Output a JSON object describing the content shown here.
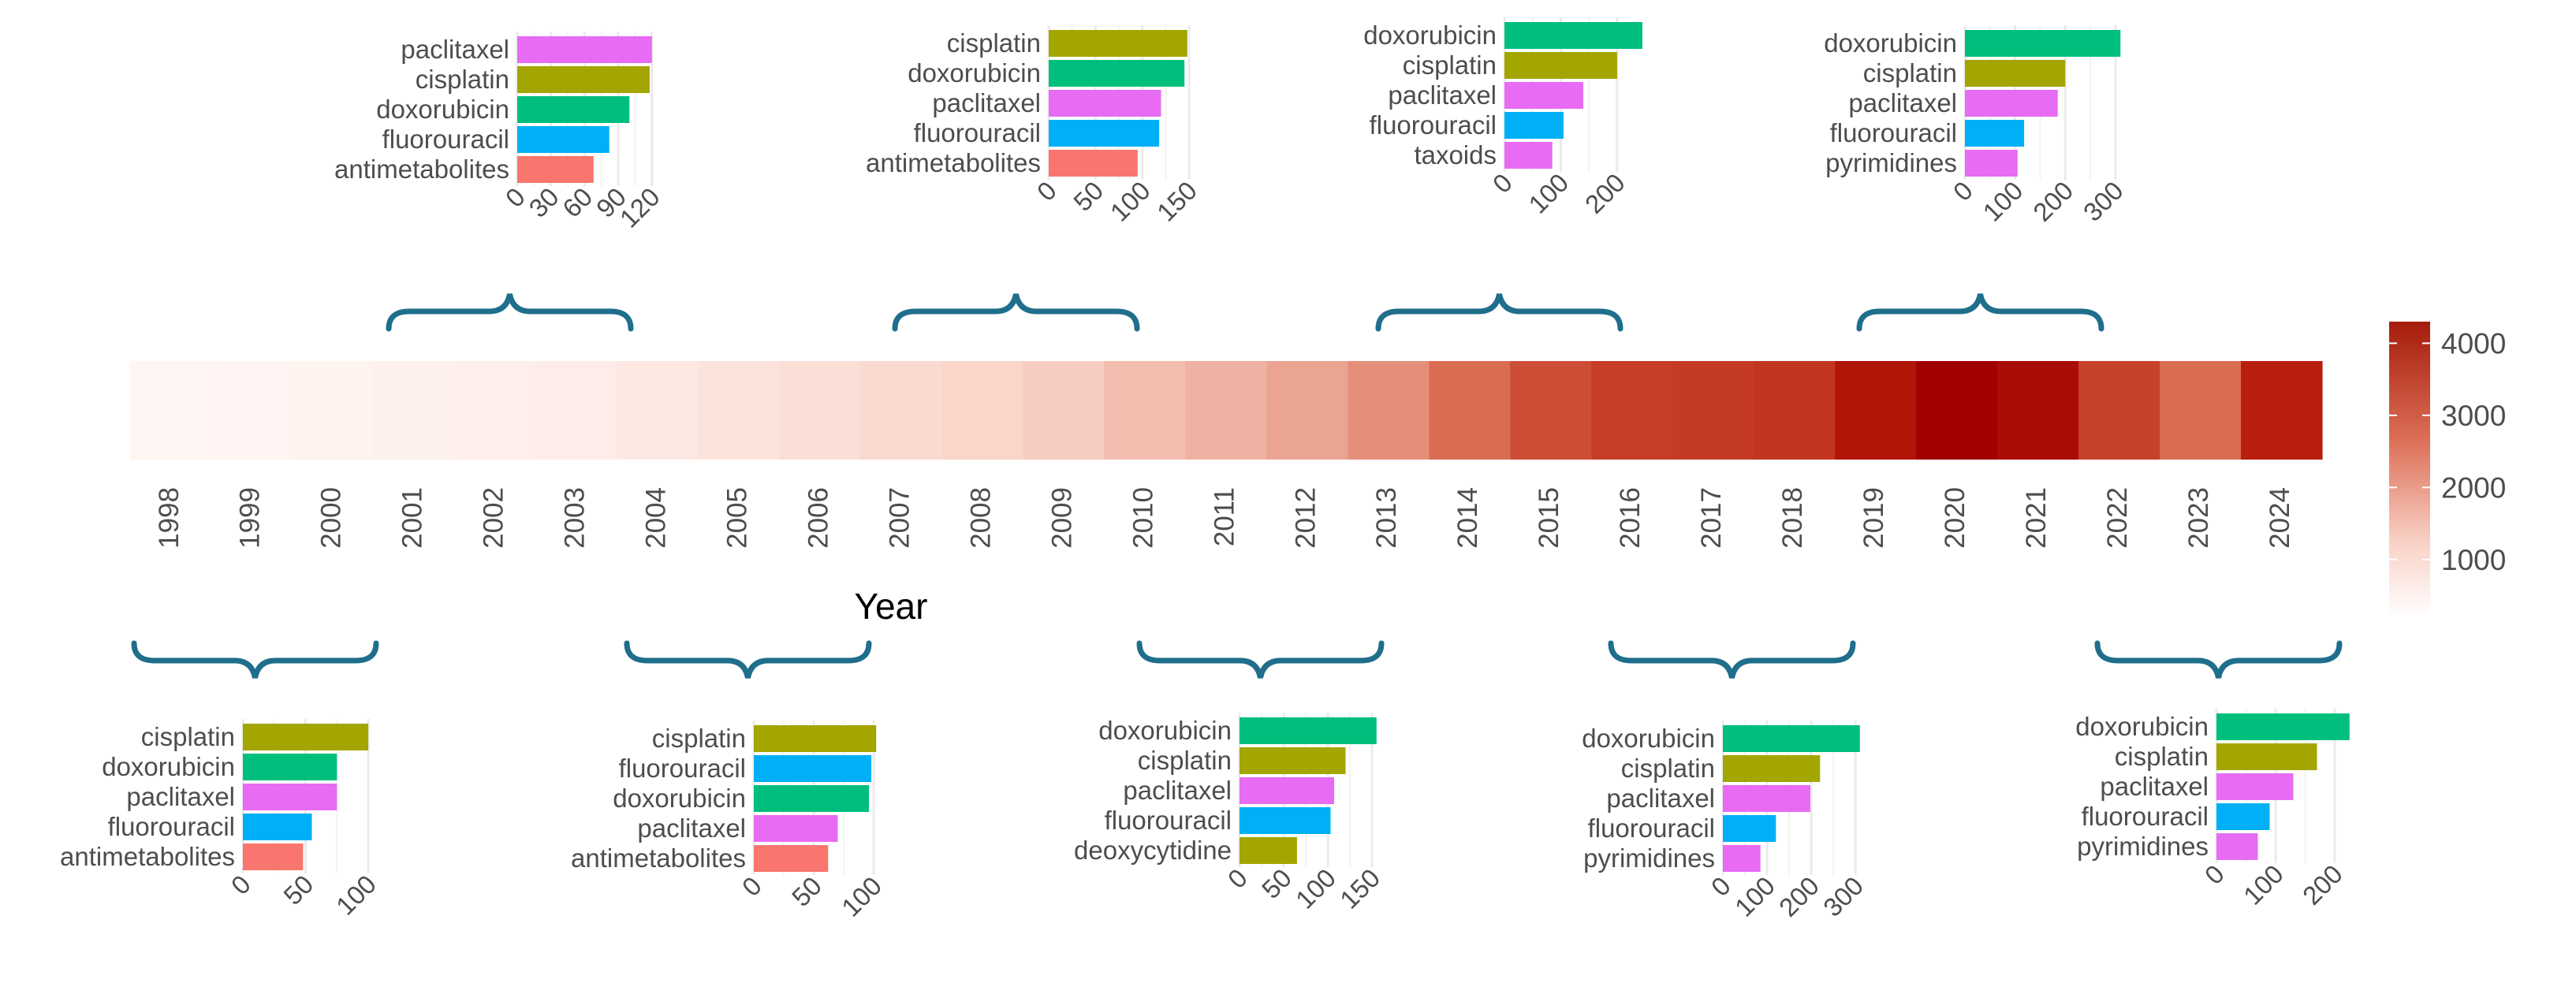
{
  "chart_data": {
    "type": "heatmap",
    "title": "",
    "xlabel": "Year",
    "years": [
      "1998",
      "1999",
      "2000",
      "2001",
      "2002",
      "2003",
      "2004",
      "2005",
      "2006",
      "2007",
      "2008",
      "2009",
      "2010",
      "2011",
      "2012",
      "2013",
      "2014",
      "2015",
      "2016",
      "2017",
      "2018",
      "2019",
      "2020",
      "2021",
      "2022",
      "2023",
      "2024"
    ],
    "values": [
      200,
      220,
      260,
      330,
      380,
      450,
      600,
      700,
      850,
      1000,
      1150,
      1300,
      1550,
      1700,
      1900,
      2200,
      2700,
      3100,
      3300,
      3350,
      3400,
      3900,
      4300,
      4050,
      3250,
      2700,
      3700
    ],
    "legend": {
      "min": 200,
      "max": 4300,
      "ticks": [
        1000,
        2000,
        3000,
        4000
      ],
      "colors": {
        "low": "#fff5f2",
        "high": "#a00000"
      }
    },
    "period_charts": [
      {
        "period": "1998-2000",
        "type": "bar-horizontal",
        "categories": [
          "cisplatin",
          "doxorubicin",
          "paclitaxel",
          "fluorouracil",
          "antimetabolites"
        ],
        "values": [
          100,
          75,
          75,
          55,
          48
        ],
        "ticks": [
          "0",
          "50",
          "100"
        ],
        "xlim": [
          0,
          110
        ]
      },
      {
        "period": "2001-2003",
        "type": "bar-horizontal",
        "categories": [
          "paclitaxel",
          "cisplatin",
          "doxorubicin",
          "fluorouracil",
          "antimetabolites"
        ],
        "values": [
          120,
          118,
          100,
          82,
          68
        ],
        "ticks": [
          "0",
          "30",
          "60",
          "90",
          "120"
        ],
        "xlim": [
          0,
          130
        ]
      },
      {
        "period": "2004-2006",
        "type": "bar-horizontal",
        "categories": [
          "cisplatin",
          "fluorouracil",
          "doxorubicin",
          "paclitaxel",
          "antimetabolites"
        ],
        "values": [
          102,
          98,
          96,
          70,
          62
        ],
        "ticks": [
          "0",
          "50",
          "100"
        ],
        "xlim": [
          0,
          115
        ]
      },
      {
        "period": "2007-2009",
        "type": "bar-horizontal",
        "categories": [
          "cisplatin",
          "doxorubicin",
          "paclitaxel",
          "fluorouracil",
          "antimetabolites"
        ],
        "values": [
          148,
          145,
          120,
          118,
          95
        ],
        "ticks": [
          "0",
          "50",
          "100",
          "150"
        ],
        "xlim": [
          0,
          160
        ]
      },
      {
        "period": "2010-2012",
        "type": "bar-horizontal",
        "categories": [
          "doxorubicin",
          "cisplatin",
          "paclitaxel",
          "fluorouracil",
          "deoxycytidine"
        ],
        "values": [
          155,
          120,
          107,
          103,
          65
        ],
        "ticks": [
          "0",
          "50",
          "100",
          "150"
        ],
        "xlim": [
          0,
          165
        ]
      },
      {
        "period": "2013-2015",
        "type": "bar-horizontal",
        "categories": [
          "doxorubicin",
          "cisplatin",
          "paclitaxel",
          "fluorouracil",
          "taxoids"
        ],
        "values": [
          245,
          200,
          140,
          105,
          85
        ],
        "ticks": [
          "0",
          "100",
          "200"
        ],
        "xlim": [
          0,
          280
        ]
      },
      {
        "period": "2016-2018",
        "type": "bar-horizontal",
        "categories": [
          "doxorubicin",
          "cisplatin",
          "paclitaxel",
          "fluorouracil",
          "pyrimidines"
        ],
        "values": [
          310,
          220,
          198,
          120,
          85
        ],
        "ticks": [
          "0",
          "100",
          "200",
          "300"
        ],
        "xlim": [
          0,
          330
        ]
      },
      {
        "period": "2019-2021",
        "type": "bar-horizontal",
        "categories": [
          "doxorubicin",
          "cisplatin",
          "paclitaxel",
          "fluorouracil",
          "pyrimidines"
        ],
        "values": [
          310,
          200,
          185,
          118,
          105
        ],
        "ticks": [
          "0",
          "100",
          "200",
          "300"
        ],
        "xlim": [
          0,
          330
        ]
      },
      {
        "period": "2022-2024",
        "type": "bar-horizontal",
        "categories": [
          "doxorubicin",
          "cisplatin",
          "paclitaxel",
          "fluorouracil",
          "pyrimidines"
        ],
        "values": [
          225,
          170,
          130,
          90,
          70
        ],
        "ticks": [
          "0",
          "100",
          "200"
        ],
        "xlim": [
          0,
          240
        ]
      }
    ],
    "drug_colors": {
      "cisplatin": "#a3a500",
      "doxorubicin": "#00bf7d",
      "paclitaxel": "#e76bf3",
      "fluorouracil": "#00b0f6",
      "antimetabolites": "#f8766d",
      "deoxycytidine": "#a3a500",
      "taxoids": "#e76bf3",
      "pyrimidines": "#e76bf3"
    },
    "brace_color": "#1f6e8c"
  }
}
